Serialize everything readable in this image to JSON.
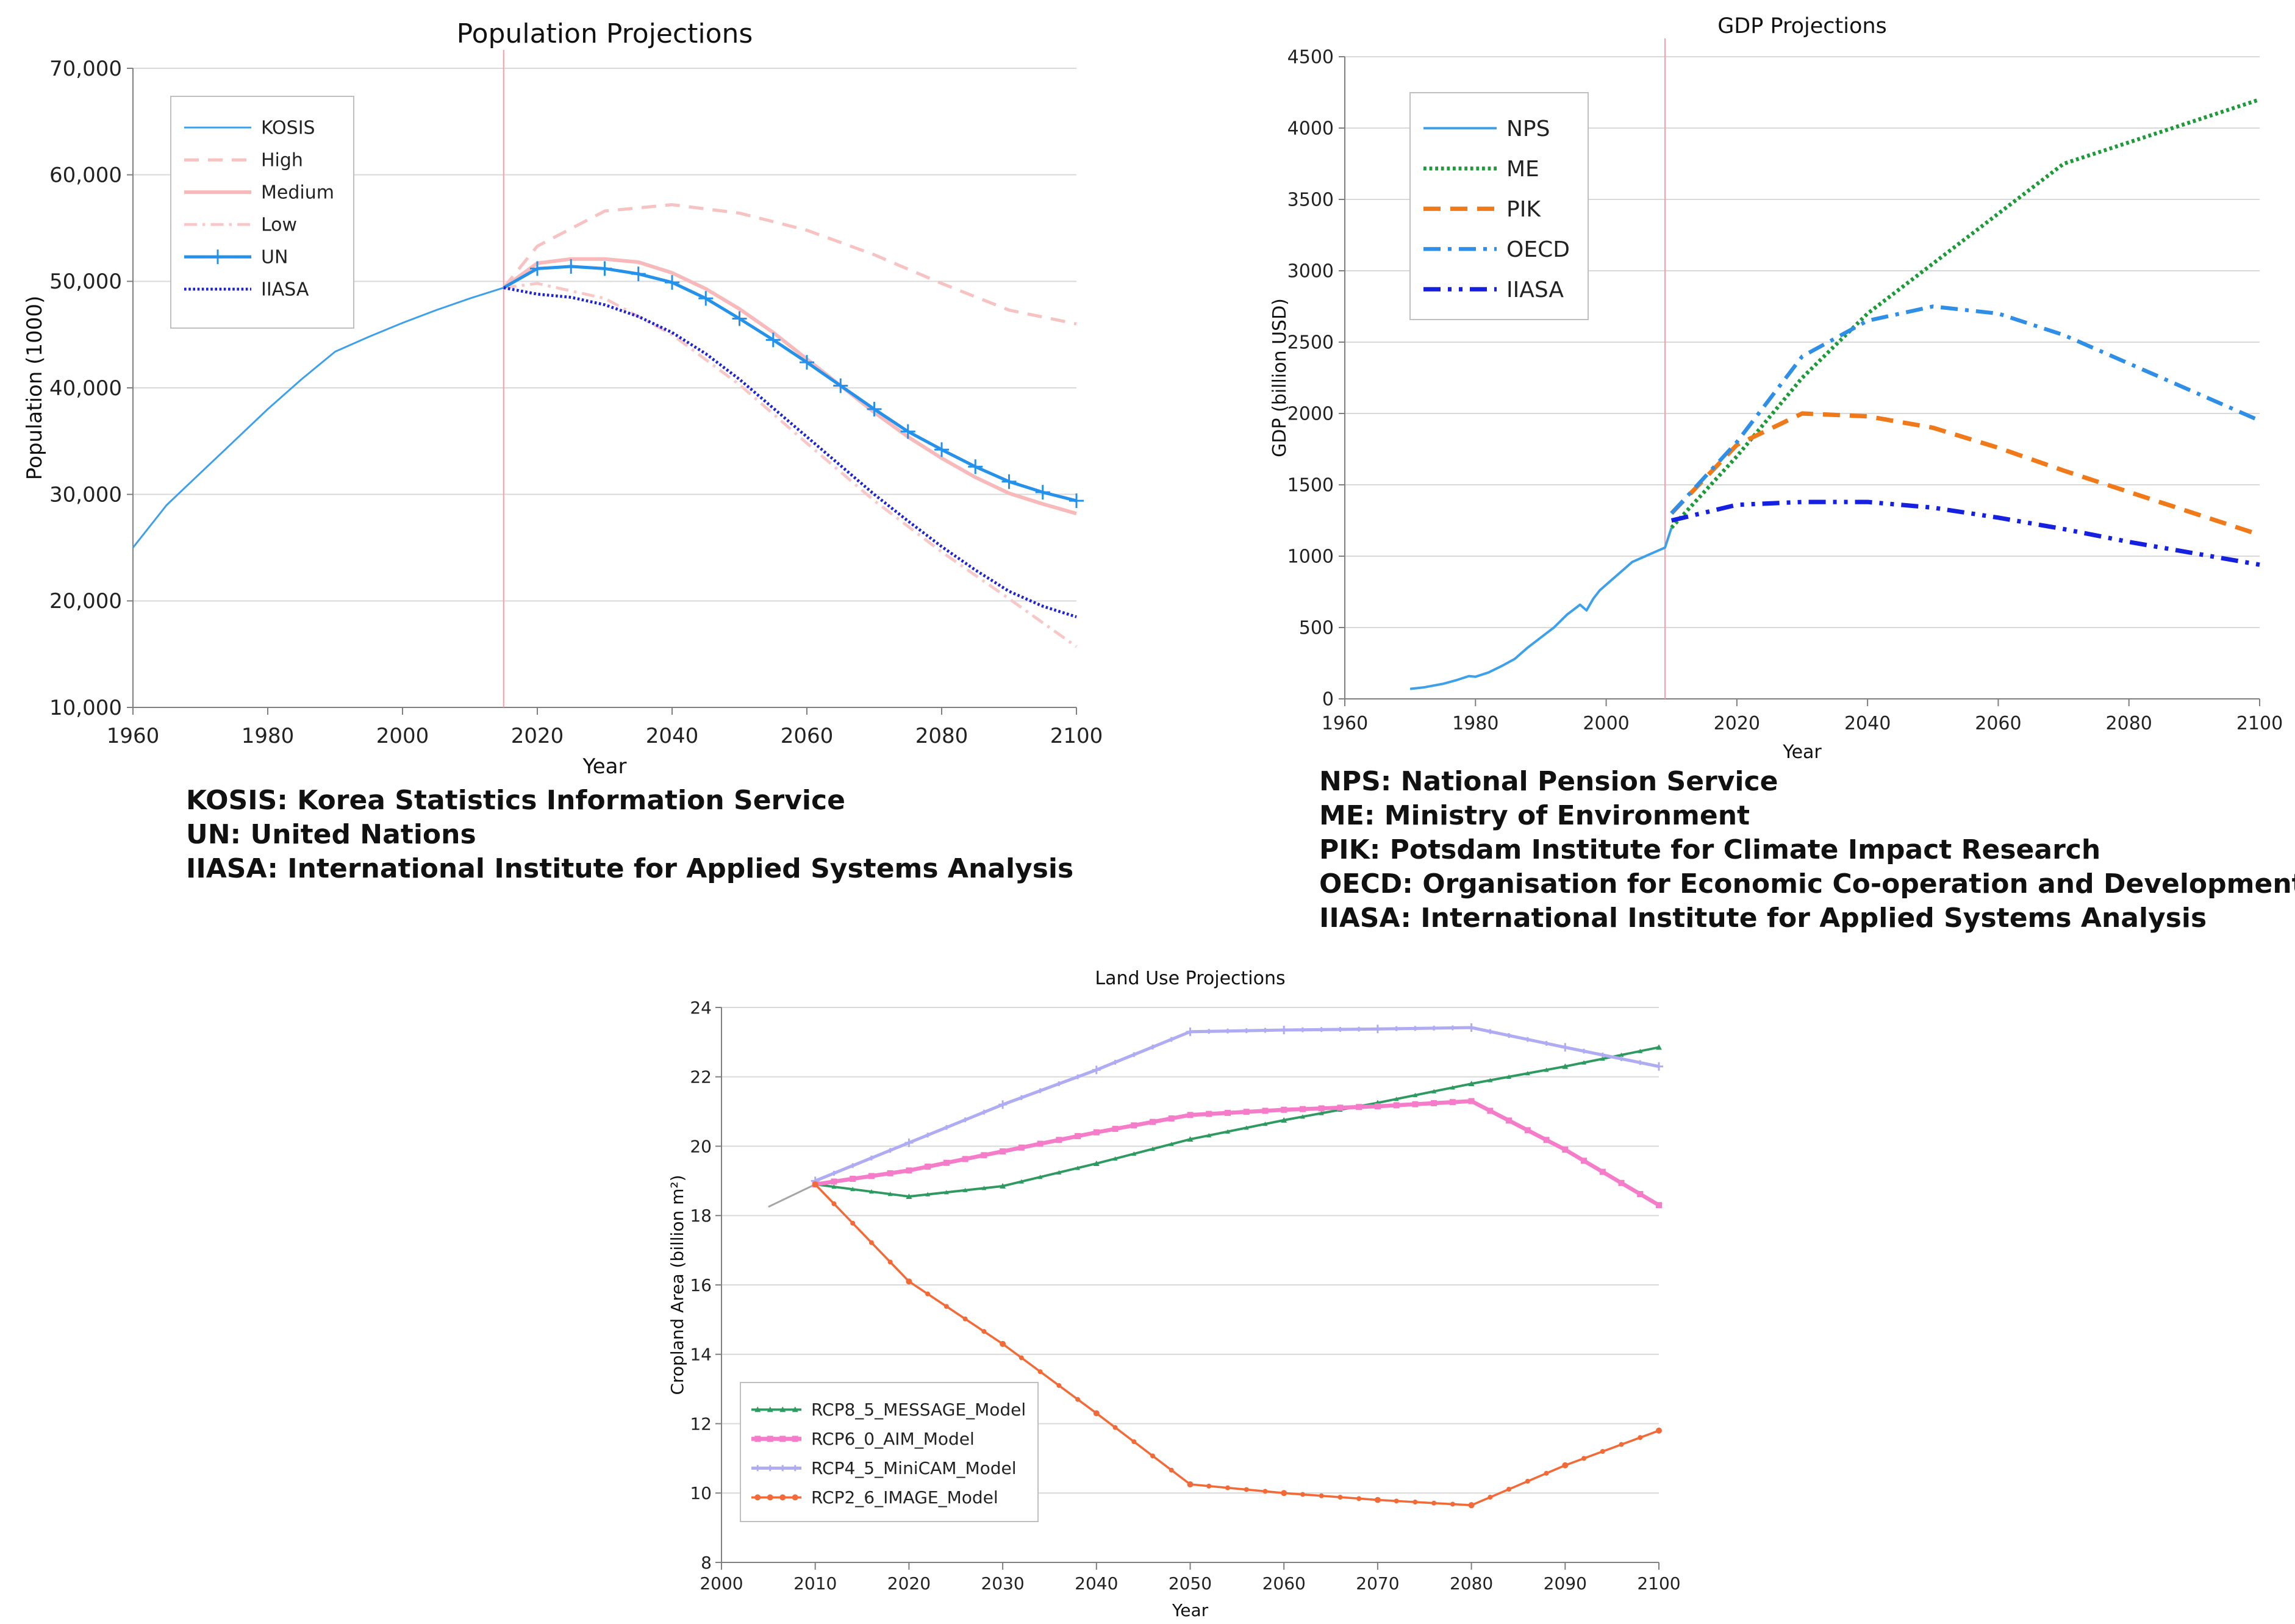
{
  "colors": {
    "kosis": "#3fa0ea",
    "high": "#f7c2c2",
    "medium": "#f7b9b9",
    "low": "#f8c7c7",
    "un": "#2491ea",
    "iiasa_pop": "#1c22d6",
    "nps": "#3fa0ea",
    "me": "#1f9a3a",
    "pik": "#f07a1a",
    "oecd": "#2f8fe6",
    "iiasa_gdp": "#1520e0",
    "rcp85": "#2e9960",
    "rcp60": "#f47cc9",
    "rcp45": "#b0acf4",
    "rcp26": "#f26a37",
    "history_land": "#a6a6a6",
    "marker": "#ff9aa8",
    "grid": "#d9d9d9",
    "axis": "#7f7f7f"
  },
  "chart_data": [
    {
      "id": "population",
      "type": "line",
      "title": "Population Projections",
      "xlabel": "Year",
      "ylabel": "Population (1000)",
      "xlim": [
        1960,
        2100
      ],
      "ylim": [
        10000,
        70000
      ],
      "xticks": [
        1960,
        1980,
        2000,
        2020,
        2040,
        2060,
        2080,
        2100
      ],
      "yticks": [
        10000,
        20000,
        30000,
        40000,
        50000,
        60000,
        70000
      ],
      "ytick_labels": [
        "10,000",
        "20,000",
        "30,000",
        "40,000",
        "50,000",
        "60,000",
        "70,000"
      ],
      "grid": true,
      "legend": "top-left",
      "marker_year": 2015,
      "series": [
        {
          "name": "KOSIS",
          "style": "solid",
          "color_key": "kosis",
          "x": [
            1960,
            1965,
            1970,
            1975,
            1980,
            1985,
            1990,
            1995,
            2000,
            2005,
            2010,
            2015
          ],
          "y": [
            25000,
            29000,
            32000,
            35000,
            38000,
            40800,
            43400,
            44800,
            46100,
            47300,
            48400,
            49400
          ]
        },
        {
          "name": "High",
          "style": "longdash",
          "color_key": "high",
          "x": [
            2015,
            2020,
            2030,
            2040,
            2050,
            2060,
            2070,
            2080,
            2090,
            2100
          ],
          "y": [
            49400,
            53300,
            56600,
            57200,
            56400,
            54800,
            52500,
            49800,
            47300,
            46000
          ]
        },
        {
          "name": "Medium",
          "style": "solid-wide",
          "color_key": "medium",
          "x": [
            2015,
            2020,
            2025,
            2030,
            2035,
            2040,
            2045,
            2050,
            2055,
            2060,
            2065,
            2070,
            2075,
            2080,
            2085,
            2090,
            2095,
            2100
          ],
          "y": [
            49400,
            51700,
            52100,
            52100,
            51800,
            50800,
            49300,
            47400,
            45200,
            42700,
            40200,
            37700,
            35400,
            33400,
            31600,
            30100,
            29100,
            28200
          ]
        },
        {
          "name": "Low",
          "style": "dashdot",
          "color_key": "low",
          "x": [
            2015,
            2020,
            2030,
            2040,
            2050,
            2060,
            2070,
            2080,
            2090,
            2100
          ],
          "y": [
            49400,
            49800,
            48400,
            45000,
            40300,
            34800,
            29400,
            24600,
            20200,
            15700
          ]
        },
        {
          "name": "UN",
          "style": "marker-plus",
          "color_key": "un",
          "x": [
            2015,
            2020,
            2025,
            2030,
            2035,
            2040,
            2045,
            2050,
            2055,
            2060,
            2065,
            2070,
            2075,
            2080,
            2085,
            2090,
            2095,
            2100
          ],
          "y": [
            49400,
            51200,
            51400,
            51200,
            50700,
            49900,
            48400,
            46500,
            44500,
            42400,
            40200,
            38000,
            35900,
            34200,
            32600,
            31200,
            30200,
            29400
          ]
        },
        {
          "name": "IIASA",
          "style": "dotted",
          "color_key": "iiasa_pop",
          "x": [
            2015,
            2020,
            2025,
            2030,
            2035,
            2040,
            2045,
            2050,
            2055,
            2060,
            2065,
            2070,
            2075,
            2080,
            2085,
            2090,
            2095,
            2100
          ],
          "y": [
            49400,
            48800,
            48500,
            47800,
            46700,
            45200,
            43200,
            40800,
            38100,
            35400,
            32700,
            30000,
            27500,
            25100,
            22900,
            20900,
            19500,
            18500
          ]
        }
      ]
    },
    {
      "id": "gdp",
      "type": "line",
      "title": "GDP Projections",
      "xlabel": "Year",
      "ylabel": "GDP (billion USD)",
      "xlim": [
        1960,
        2100
      ],
      "ylim": [
        0,
        4500
      ],
      "xticks": [
        1960,
        1980,
        2000,
        2020,
        2040,
        2060,
        2080,
        2100
      ],
      "yticks": [
        0,
        500,
        1000,
        1500,
        2000,
        2500,
        3000,
        3500,
        4000,
        4500
      ],
      "ytick_labels": [
        "0",
        "500",
        "1000",
        "1500",
        "2000",
        "2500",
        "3000",
        "3500",
        "4000",
        "4500"
      ],
      "grid": true,
      "legend": "top-left",
      "marker_year": 2009,
      "series": [
        {
          "name": "NPS",
          "style": "solid",
          "color_key": "nps",
          "x": [
            1970,
            1972,
            1975,
            1977,
            1979,
            1980,
            1982,
            1984,
            1986,
            1988,
            1990,
            1992,
            1994,
            1996,
            1997,
            1998,
            1999,
            2000,
            2002,
            2004,
            2006,
            2008,
            2009,
            2010
          ],
          "y": [
            70,
            80,
            105,
            130,
            160,
            155,
            185,
            230,
            280,
            360,
            430,
            500,
            590,
            660,
            620,
            700,
            760,
            800,
            880,
            960,
            1000,
            1040,
            1060,
            1200
          ]
        },
        {
          "name": "ME",
          "style": "dotted",
          "color_key": "me",
          "x": [
            2010,
            2020,
            2030,
            2040,
            2050,
            2060,
            2070,
            2080,
            2090,
            2100
          ],
          "y": [
            1200,
            1700,
            2250,
            2700,
            3050,
            3400,
            3750,
            3900,
            4050,
            4200
          ]
        },
        {
          "name": "PIK",
          "style": "dashed",
          "color_key": "pik",
          "x": [
            2010,
            2020,
            2030,
            2040,
            2050,
            2060,
            2070,
            2080,
            2090,
            2100
          ],
          "y": [
            1300,
            1780,
            2000,
            1980,
            1900,
            1760,
            1600,
            1450,
            1300,
            1150
          ]
        },
        {
          "name": "OECD",
          "style": "dashdot",
          "color_key": "oecd",
          "x": [
            2010,
            2020,
            2030,
            2040,
            2050,
            2060,
            2070,
            2080,
            2090,
            2100
          ],
          "y": [
            1300,
            1800,
            2400,
            2650,
            2750,
            2700,
            2550,
            2350,
            2150,
            1950
          ]
        },
        {
          "name": "IIASA",
          "style": "dashdotdot",
          "color_key": "iiasa_gdp",
          "x": [
            2010,
            2020,
            2030,
            2040,
            2050,
            2060,
            2070,
            2080,
            2090,
            2100
          ],
          "y": [
            1250,
            1360,
            1380,
            1380,
            1340,
            1270,
            1190,
            1100,
            1020,
            940
          ]
        }
      ]
    },
    {
      "id": "landuse",
      "type": "line",
      "title": "Land Use Projections",
      "xlabel": "Year",
      "ylabel": "Cropland Area (billion m²)",
      "xlim": [
        2000,
        2100
      ],
      "ylim": [
        8,
        24
      ],
      "xticks": [
        2000,
        2010,
        2020,
        2030,
        2040,
        2050,
        2060,
        2070,
        2080,
        2090,
        2100
      ],
      "yticks": [
        8,
        10,
        12,
        14,
        16,
        18,
        20,
        22,
        24
      ],
      "ytick_labels": [
        "8",
        "10",
        "12",
        "14",
        "16",
        "18",
        "20",
        "22",
        "24"
      ],
      "grid": true,
      "legend": "bottom-left",
      "series": [
        {
          "name": "history",
          "style": "solid",
          "color_key": "history_land",
          "in_legend": false,
          "x": [
            2005,
            2010
          ],
          "y": [
            18.25,
            18.9
          ]
        },
        {
          "name": "RCP8_5_MESSAGE_Model",
          "style": "marker-triangle",
          "color_key": "rcp85",
          "x": [
            2010,
            2020,
            2030,
            2040,
            2050,
            2060,
            2070,
            2080,
            2090,
            2100
          ],
          "y": [
            18.9,
            18.55,
            18.85,
            19.5,
            20.2,
            20.75,
            21.25,
            21.8,
            22.3,
            22.85
          ]
        },
        {
          "name": "RCP6_0_AIM_Model",
          "style": "marker-square",
          "color_key": "rcp60",
          "x": [
            2010,
            2020,
            2030,
            2040,
            2050,
            2060,
            2070,
            2080,
            2090,
            2100
          ],
          "y": [
            18.9,
            19.3,
            19.85,
            20.4,
            20.9,
            21.05,
            21.15,
            21.3,
            19.9,
            18.3
          ]
        },
        {
          "name": "RCP4_5_MiniCAM_Model",
          "style": "marker-plus",
          "color_key": "rcp45",
          "x": [
            2010,
            2020,
            2030,
            2040,
            2050,
            2060,
            2070,
            2080,
            2090,
            2100
          ],
          "y": [
            19.0,
            20.1,
            21.2,
            22.2,
            23.3,
            23.35,
            23.38,
            23.42,
            22.85,
            22.3
          ]
        },
        {
          "name": "RCP2_6_IMAGE_Model",
          "style": "marker-dot",
          "color_key": "rcp26",
          "x": [
            2010,
            2020,
            2030,
            2040,
            2050,
            2060,
            2070,
            2080,
            2090,
            2100
          ],
          "y": [
            18.9,
            16.1,
            14.3,
            12.3,
            10.25,
            10.0,
            9.8,
            9.65,
            10.8,
            11.8
          ]
        }
      ]
    }
  ],
  "population_notes": [
    "KOSIS: Korea Statistics Information Service",
    "UN: United Nations",
    "IIASA: International Institute for Applied Systems Analysis"
  ],
  "gdp_notes": [
    "NPS: National Pension Service",
    "ME: Ministry of Environment",
    "PIK: Potsdam Institute for Climate Impact Research",
    "OECD: Organisation for Economic Co-operation and Development",
    "IIASA: International Institute for Applied Systems Analysis"
  ]
}
